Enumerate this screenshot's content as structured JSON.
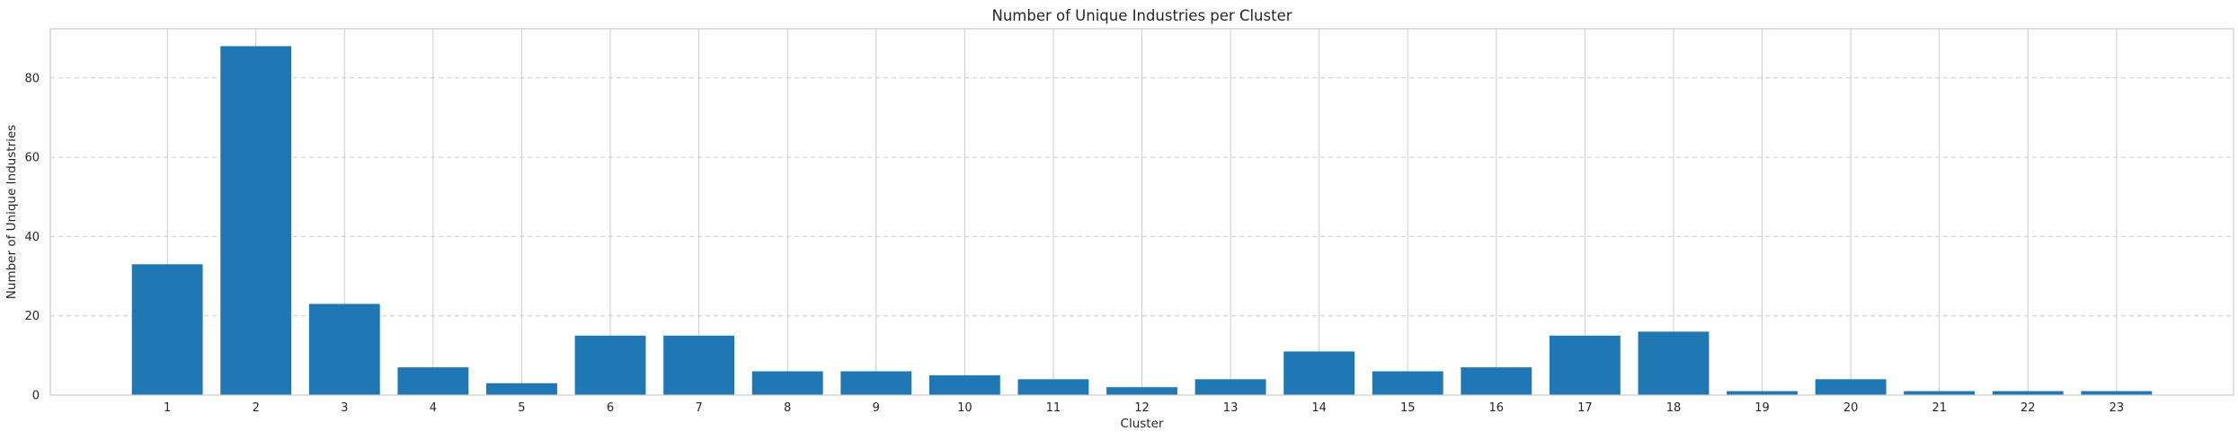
{
  "chart_data": {
    "type": "bar",
    "title": "Number of Unique Industries per Cluster",
    "xlabel": "Cluster",
    "ylabel": "Number of Unique Industries",
    "categories": [
      "1",
      "2",
      "3",
      "4",
      "5",
      "6",
      "7",
      "8",
      "9",
      "10",
      "11",
      "12",
      "13",
      "14",
      "15",
      "16",
      "17",
      "18",
      "19",
      "20",
      "21",
      "22",
      "23"
    ],
    "values": [
      33,
      88,
      23,
      7,
      3,
      15,
      15,
      6,
      6,
      5,
      4,
      2,
      4,
      11,
      6,
      7,
      15,
      16,
      1,
      4,
      1,
      1,
      1
    ],
    "yticks": [
      0,
      20,
      40,
      60,
      80
    ],
    "ylim": [
      0,
      92.4
    ],
    "grid": true,
    "bar_color": "#1f77b4",
    "grid_color": "#cccccc",
    "spine_color": "#cccccc"
  }
}
